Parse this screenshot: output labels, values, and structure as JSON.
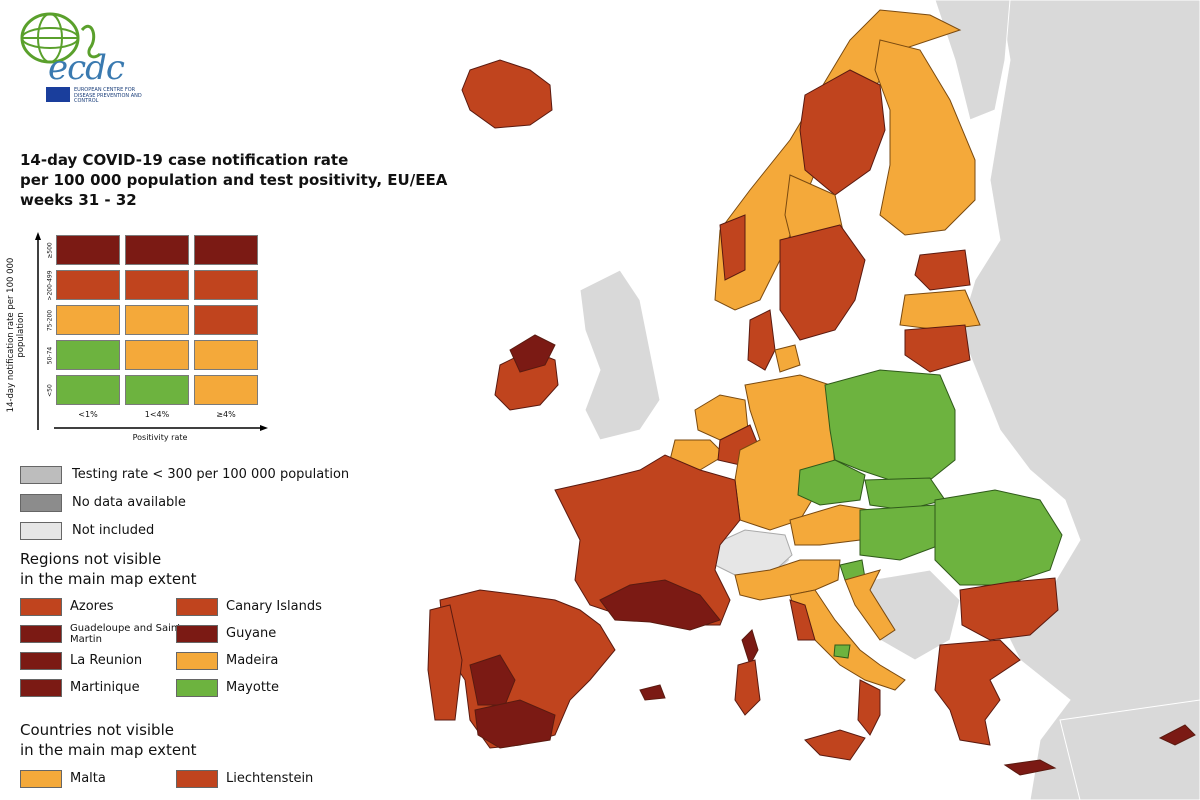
{
  "logo": {
    "wordmark": "ecdc",
    "subtitle": "EUROPEAN CENTRE FOR DISEASE PREVENTION AND CONTROL"
  },
  "title": {
    "line1": "14-day COVID-19 case notification rate",
    "line2": "per 100 000 population and test positivity, EU/EEA",
    "line3": "weeks 31 - 32"
  },
  "matrix": {
    "y_axis_label": "14-day notification rate per 100 000 population",
    "x_axis_label": "Positivity rate",
    "rows": [
      "≥500",
      ">200-499",
      "75-200",
      "50-74",
      "<50"
    ],
    "columns": [
      "<1%",
      "1<4%",
      "≥4%"
    ],
    "colors": [
      [
        "#7b1a14",
        "#7b1a14",
        "#7b1a14"
      ],
      [
        "#c0441e",
        "#c0441e",
        "#c0441e"
      ],
      [
        "#f4a93a",
        "#f4a93a",
        "#c0441e"
      ],
      [
        "#6db33f",
        "#f4a93a",
        "#f4a93a"
      ],
      [
        "#6db33f",
        "#6db33f",
        "#f4a93a"
      ]
    ]
  },
  "legend": {
    "testing_rate": "Testing rate < 300 per 100 000 population",
    "no_data": "No data available",
    "not_included": "Not included",
    "regions_heading_1": "Regions not visible",
    "regions_heading_2": "in the main map extent",
    "regions": [
      {
        "name": "Azores",
        "color": "#c0441e"
      },
      {
        "name": "Canary Islands",
        "color": "#c0441e"
      },
      {
        "name": "Guadeloupe and Saint Martin",
        "color": "#7b1a14"
      },
      {
        "name": "Guyane",
        "color": "#7b1a14"
      },
      {
        "name": "La Reunion",
        "color": "#7b1a14"
      },
      {
        "name": "Madeira",
        "color": "#f4a93a"
      },
      {
        "name": "Martinique",
        "color": "#7b1a14"
      },
      {
        "name": "Mayotte",
        "color": "#6db33f"
      }
    ],
    "countries_heading_1": "Countries not visible",
    "countries_heading_2": "in the main map extent",
    "countries": [
      {
        "name": "Malta",
        "color": "#f4a93a"
      },
      {
        "name": "Liechtenstein",
        "color": "#c0441e"
      }
    ]
  },
  "colors": {
    "dark_red": "#7b1a14",
    "red": "#c0441e",
    "orange": "#f4a93a",
    "green": "#6db33f",
    "testing_gray": "#bdbdbd",
    "no_data_gray": "#8c8c8c",
    "not_included": "#e6e6e6",
    "outside": "#d9d9d9"
  }
}
